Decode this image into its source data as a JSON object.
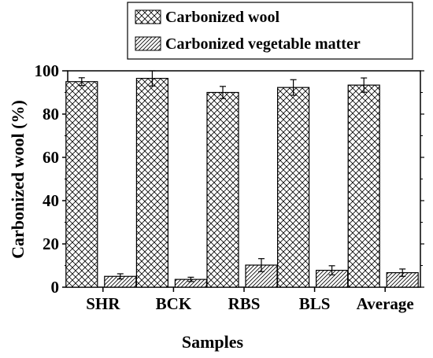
{
  "chart_data": {
    "type": "bar",
    "xlabel": "Samples",
    "ylabel": "Carbonized wool (%)",
    "categories": [
      "SHR",
      "BCK",
      "RBS",
      "BLS",
      "Average"
    ],
    "ylim": [
      0,
      100
    ],
    "yticks": [
      0,
      20,
      40,
      60,
      80,
      100
    ],
    "legend_position": "top",
    "series": [
      {
        "name": "Carbonized wool",
        "pattern": "crosshatch",
        "values": [
          95.0,
          96.5,
          90.0,
          92.3,
          93.4
        ],
        "errors": [
          1.8,
          3.5,
          2.8,
          3.6,
          3.3
        ]
      },
      {
        "name": "Carbonized vegetable matter",
        "pattern": "diagonal",
        "values": [
          5.0,
          3.6,
          10.2,
          7.8,
          6.7
        ],
        "errors": [
          1.2,
          1.0,
          3.0,
          2.1,
          1.7
        ]
      }
    ]
  }
}
